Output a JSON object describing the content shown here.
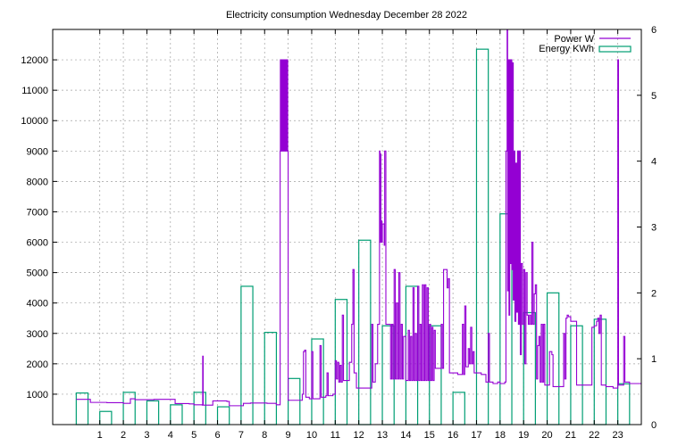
{
  "chart_data": {
    "type": "line",
    "title": "Electricity consumption Wednesday December 28 2022",
    "xlabel": "",
    "ylabel": "",
    "y2label": "",
    "xlim": [
      -1,
      24
    ],
    "ylim": [
      0,
      13000
    ],
    "y2lim": [
      0,
      6
    ],
    "grid": true,
    "legend_position": "top-right",
    "x_ticks": [
      "1",
      "2",
      "3",
      "4",
      "5",
      "6",
      "7",
      "8",
      "9",
      "10",
      "11",
      "12",
      "13",
      "14",
      "15",
      "16",
      "17",
      "18",
      "19",
      "20",
      "21",
      "22",
      "23"
    ],
    "y_ticks": [
      "1000",
      "2000",
      "3000",
      "4000",
      "5000",
      "6000",
      "7000",
      "8000",
      "9000",
      "10000",
      "11000",
      "12000"
    ],
    "y2_ticks": [
      "0",
      "1",
      "2",
      "3",
      "4",
      "5",
      "6"
    ],
    "colors": {
      "power": "#9400d3",
      "energy": "#009e73"
    },
    "series": [
      {
        "name": "Power W",
        "axis": "left",
        "style": "line",
        "points": [
          [
            0.0,
            830
          ],
          [
            0.6,
            730
          ],
          [
            1.3,
            720
          ],
          [
            2.0,
            700
          ],
          [
            2.3,
            850
          ],
          [
            2.5,
            820
          ],
          [
            3.3,
            830
          ],
          [
            3.9,
            830
          ],
          [
            4.2,
            690
          ],
          [
            4.8,
            680
          ],
          [
            5.0,
            650
          ],
          [
            5.35,
            640
          ],
          [
            5.37,
            2250
          ],
          [
            5.39,
            640
          ],
          [
            5.7,
            640
          ],
          [
            5.8,
            780
          ],
          [
            6.4,
            760
          ],
          [
            6.5,
            620
          ],
          [
            7.1,
            700
          ],
          [
            7.4,
            710
          ],
          [
            8.1,
            700
          ],
          [
            8.5,
            650
          ],
          [
            8.65,
            650
          ],
          [
            8.66,
            9000
          ],
          [
            8.67,
            12000
          ],
          [
            8.7,
            9000
          ],
          [
            8.72,
            12000
          ],
          [
            8.75,
            9000
          ],
          [
            8.77,
            12000
          ],
          [
            8.8,
            9000
          ],
          [
            8.82,
            12000
          ],
          [
            8.85,
            9000
          ],
          [
            8.87,
            12000
          ],
          [
            8.9,
            9000
          ],
          [
            8.92,
            12000
          ],
          [
            8.95,
            9000
          ],
          [
            8.96,
            12000
          ],
          [
            8.98,
            9000
          ],
          [
            9.0,
            800
          ],
          [
            9.5,
            800
          ],
          [
            9.6,
            1000
          ],
          [
            9.65,
            2400
          ],
          [
            9.7,
            2450
          ],
          [
            9.75,
            900
          ],
          [
            9.9,
            850
          ],
          [
            10.0,
            2400
          ],
          [
            10.05,
            850
          ],
          [
            10.3,
            850
          ],
          [
            10.35,
            2600
          ],
          [
            10.4,
            900
          ],
          [
            10.6,
            950
          ],
          [
            10.65,
            1700
          ],
          [
            10.7,
            950
          ],
          [
            10.9,
            1000
          ],
          [
            11.0,
            2100
          ],
          [
            11.05,
            1500
          ],
          [
            11.1,
            2050
          ],
          [
            11.15,
            1400
          ],
          [
            11.2,
            1950
          ],
          [
            11.25,
            1400
          ],
          [
            11.3,
            3600
          ],
          [
            11.35,
            1450
          ],
          [
            11.5,
            1450
          ],
          [
            11.6,
            2050
          ],
          [
            11.7,
            3300
          ],
          [
            11.75,
            5100
          ],
          [
            11.8,
            1700
          ],
          [
            11.9,
            1200
          ],
          [
            12.3,
            1200
          ],
          [
            12.5,
            1200
          ],
          [
            12.55,
            3300
          ],
          [
            12.6,
            1400
          ],
          [
            12.7,
            2000
          ],
          [
            12.8,
            3300
          ],
          [
            12.85,
            3300
          ],
          [
            12.88,
            9000
          ],
          [
            12.9,
            6000
          ],
          [
            12.92,
            8900
          ],
          [
            12.94,
            6000
          ],
          [
            12.96,
            6700
          ],
          [
            12.98,
            6000
          ],
          [
            13.0,
            6600
          ],
          [
            13.05,
            6600
          ],
          [
            13.08,
            5900
          ],
          [
            13.1,
            9000
          ],
          [
            13.15,
            3300
          ],
          [
            13.3,
            3300
          ],
          [
            13.35,
            1500
          ],
          [
            13.4,
            3300
          ],
          [
            13.45,
            1500
          ],
          [
            13.5,
            5100
          ],
          [
            13.55,
            1500
          ],
          [
            13.6,
            4000
          ],
          [
            13.65,
            1500
          ],
          [
            13.7,
            5000
          ],
          [
            13.75,
            1500
          ],
          [
            13.8,
            3300
          ],
          [
            13.85,
            1500
          ],
          [
            13.9,
            2900
          ],
          [
            14.0,
            1450
          ],
          [
            14.1,
            3100
          ],
          [
            14.15,
            1450
          ],
          [
            14.2,
            2900
          ],
          [
            14.25,
            1450
          ],
          [
            14.3,
            4500
          ],
          [
            14.35,
            1450
          ],
          [
            14.4,
            3000
          ],
          [
            14.45,
            1450
          ],
          [
            14.5,
            4550
          ],
          [
            14.55,
            1450
          ],
          [
            14.6,
            3300
          ],
          [
            14.65,
            1450
          ],
          [
            14.7,
            4600
          ],
          [
            14.75,
            1450
          ],
          [
            14.8,
            4600
          ],
          [
            14.85,
            1450
          ],
          [
            14.9,
            4500
          ],
          [
            14.95,
            1450
          ],
          [
            15.0,
            3300
          ],
          [
            15.05,
            1450
          ],
          [
            15.1,
            3200
          ],
          [
            15.15,
            1450
          ],
          [
            15.2,
            3100
          ],
          [
            15.25,
            1850
          ],
          [
            15.4,
            1850
          ],
          [
            15.5,
            3300
          ],
          [
            15.55,
            1850
          ],
          [
            15.6,
            5100
          ],
          [
            15.7,
            5100
          ],
          [
            15.75,
            4500
          ],
          [
            15.8,
            4800
          ],
          [
            15.85,
            1700
          ],
          [
            16.2,
            1650
          ],
          [
            16.4,
            3300
          ],
          [
            16.45,
            1650
          ],
          [
            16.5,
            3900
          ],
          [
            16.55,
            1900
          ],
          [
            16.65,
            2500
          ],
          [
            16.7,
            2000
          ],
          [
            16.75,
            3200
          ],
          [
            16.8,
            2000
          ],
          [
            16.85,
            2400
          ],
          [
            16.9,
            1700
          ],
          [
            17.2,
            1650
          ],
          [
            17.4,
            1400
          ],
          [
            17.5,
            3000
          ],
          [
            17.55,
            1400
          ],
          [
            17.7,
            1350
          ],
          [
            17.9,
            1400
          ],
          [
            18.0,
            1350
          ],
          [
            18.1,
            1350
          ],
          [
            18.2,
            1400
          ],
          [
            18.25,
            9000
          ],
          [
            18.3,
            13000
          ],
          [
            18.32,
            4400
          ],
          [
            18.35,
            12000
          ],
          [
            18.38,
            3600
          ],
          [
            18.41,
            12000
          ],
          [
            18.44,
            5300
          ],
          [
            18.47,
            12000
          ],
          [
            18.5,
            5100
          ],
          [
            18.53,
            11900
          ],
          [
            18.56,
            4100
          ],
          [
            18.6,
            9000
          ],
          [
            18.63,
            3400
          ],
          [
            18.67,
            8600
          ],
          [
            18.7,
            3700
          ],
          [
            18.74,
            9000
          ],
          [
            18.78,
            3300
          ],
          [
            18.82,
            9000
          ],
          [
            18.86,
            2300
          ],
          [
            18.9,
            5300
          ],
          [
            18.95,
            3300
          ],
          [
            19.0,
            5100
          ],
          [
            19.05,
            2000
          ],
          [
            19.1,
            5000
          ],
          [
            19.15,
            3600
          ],
          [
            19.2,
            3300
          ],
          [
            19.25,
            3600
          ],
          [
            19.3,
            3300
          ],
          [
            19.35,
            6000
          ],
          [
            19.4,
            3300
          ],
          [
            19.45,
            4300
          ],
          [
            19.5,
            4600
          ],
          [
            19.55,
            1500
          ],
          [
            19.6,
            2600
          ],
          [
            19.65,
            2900
          ],
          [
            19.7,
            1400
          ],
          [
            19.75,
            3300
          ],
          [
            19.8,
            1400
          ],
          [
            19.85,
            3300
          ],
          [
            19.9,
            1300
          ],
          [
            20.0,
            1300
          ],
          [
            20.1,
            2400
          ],
          [
            20.2,
            2300
          ],
          [
            20.25,
            1250
          ],
          [
            20.6,
            1250
          ],
          [
            20.7,
            3000
          ],
          [
            20.75,
            1500
          ],
          [
            20.8,
            3500
          ],
          [
            20.85,
            3600
          ],
          [
            20.9,
            3550
          ],
          [
            21.0,
            3400
          ],
          [
            21.2,
            3400
          ],
          [
            21.25,
            1300
          ],
          [
            21.8,
            1300
          ],
          [
            21.9,
            3200
          ],
          [
            22.0,
            3250
          ],
          [
            22.1,
            3400
          ],
          [
            22.15,
            3500
          ],
          [
            22.2,
            3000
          ],
          [
            22.25,
            3600
          ],
          [
            22.3,
            1300
          ],
          [
            22.5,
            1250
          ],
          [
            22.8,
            1200
          ],
          [
            22.95,
            1200
          ],
          [
            23.0,
            12000
          ],
          [
            23.03,
            1300
          ],
          [
            23.2,
            1300
          ],
          [
            23.25,
            2900
          ],
          [
            23.3,
            1400
          ],
          [
            23.5,
            1350
          ],
          [
            24.0,
            1350
          ]
        ]
      },
      {
        "name": "Energy KWh",
        "axis": "right",
        "style": "bars",
        "x": [
          0,
          1,
          2,
          3,
          4,
          5,
          6,
          7,
          8,
          9,
          10,
          11,
          12,
          13,
          14,
          15,
          16,
          17,
          18,
          19,
          20,
          21,
          22,
          23
        ],
        "values": [
          0.48,
          0.2,
          0.49,
          0.36,
          0.3,
          0.49,
          0.27,
          2.1,
          1.4,
          0.7,
          1.3,
          1.9,
          2.8,
          1.5,
          2.1,
          1.5,
          0.49,
          5.7,
          3.2,
          1.7,
          2.0,
          1.5,
          1.6,
          0.62
        ]
      }
    ]
  }
}
